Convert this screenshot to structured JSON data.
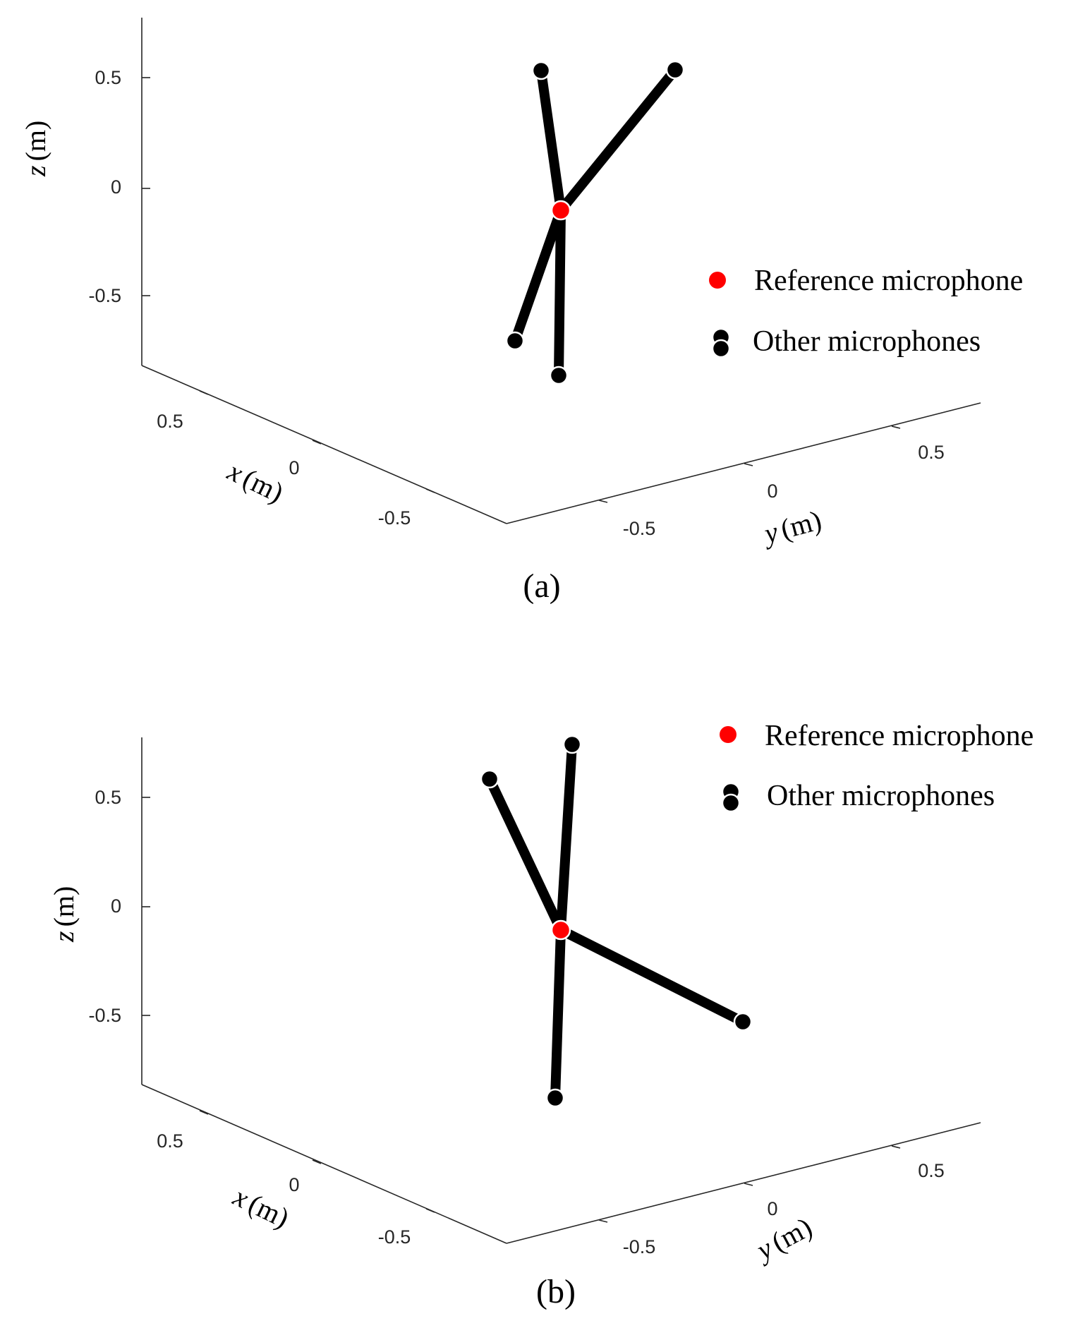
{
  "figure": {
    "colors": {
      "reference": "#ff0000",
      "other": "#000000",
      "arm": "#000000",
      "axis": "#262626"
    }
  },
  "chart_data": [
    {
      "type": "scatter",
      "panel_label": "(a)",
      "xlabel": {
        "var": "x",
        "unit": "(m)"
      },
      "ylabel": {
        "var": "y",
        "unit": "(m)"
      },
      "zlabel": {
        "var": "z",
        "unit": "(m)"
      },
      "x_ticks": [
        "0.5",
        "0",
        "-0.5"
      ],
      "y_ticks": [
        "-0.5",
        "0",
        "0.5"
      ],
      "z_ticks": [
        "0.5",
        "0",
        "-0.5"
      ],
      "legend": {
        "position": "right",
        "entries": [
          "Reference microphone",
          "Other microphones"
        ]
      },
      "series": [
        {
          "name": "Reference microphone",
          "points": [
            [
              0,
              0,
              -0.1
            ]
          ]
        },
        {
          "name": "Other microphones",
          "points": [
            [
              0.18,
              -0.25,
              0.55
            ],
            [
              -0.35,
              0.35,
              0.55
            ],
            [
              0.3,
              -0.5,
              -0.7
            ],
            [
              -0.1,
              -0.25,
              -0.85
            ]
          ]
        }
      ]
    },
    {
      "type": "scatter",
      "panel_label": "(b)",
      "xlabel": {
        "var": "x",
        "unit": "(m)"
      },
      "ylabel": {
        "var": "y",
        "unit": "(m)"
      },
      "zlabel": {
        "var": "z",
        "unit": "(m)"
      },
      "x_ticks": [
        "0.5",
        "0",
        "-0.5"
      ],
      "y_ticks": [
        "-0.5",
        "0",
        "0.5"
      ],
      "z_ticks": [
        "0.5",
        "0",
        "-0.5"
      ],
      "legend": {
        "position": "top-right",
        "entries": [
          "Reference microphone",
          "Other microphones"
        ]
      },
      "series": [
        {
          "name": "Reference microphone",
          "points": [
            [
              0,
              0,
              -0.1
            ]
          ]
        },
        {
          "name": "Other microphones",
          "points": [
            [
              0.3,
              -0.35,
              0.6
            ],
            [
              -0.1,
              -0.05,
              0.75
            ],
            [
              -0.45,
              0.35,
              -0.5
            ],
            [
              -0.1,
              -0.25,
              -0.85
            ]
          ]
        }
      ]
    }
  ]
}
